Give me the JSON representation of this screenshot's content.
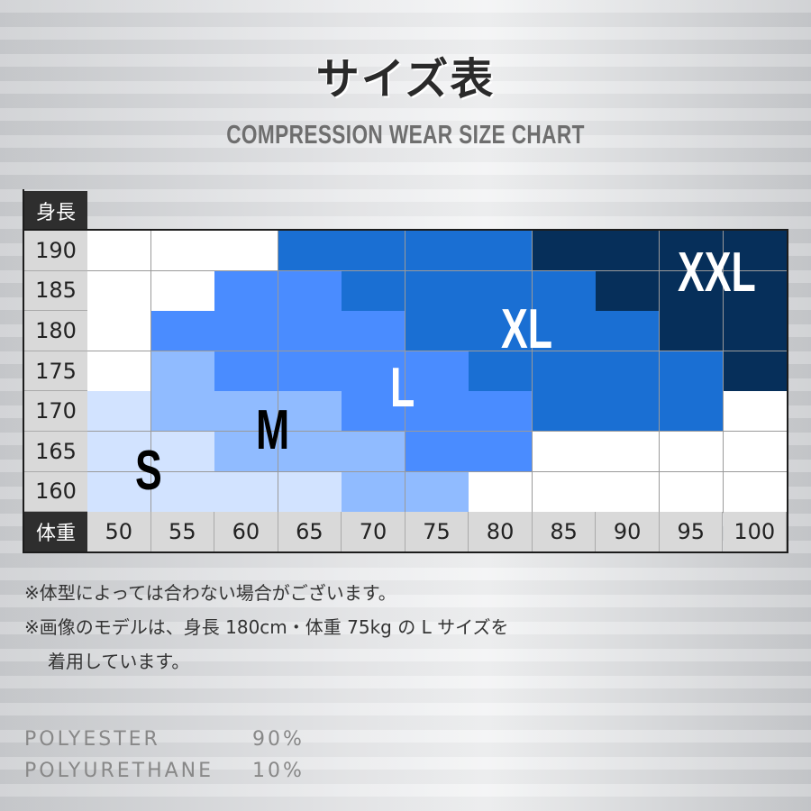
{
  "title": "サイズ表",
  "subtitle": "COMPRESSION WEAR SIZE CHART",
  "chart_data": {
    "type": "heatmap",
    "y_label": "身長",
    "x_label": "体重",
    "y_categories": [
      "190",
      "185",
      "180",
      "175",
      "170",
      "165",
      "160"
    ],
    "x_categories": [
      "50",
      "55",
      "60",
      "65",
      "70",
      "75",
      "80",
      "85",
      "90",
      "95",
      "100"
    ],
    "matrix": [
      [
        "",
        "",
        "",
        "XL",
        "XL",
        "XL",
        "XL",
        "XXL",
        "XXL",
        "XXL",
        "XXL"
      ],
      [
        "",
        "",
        "L",
        "L",
        "XL",
        "XL",
        "XL",
        "XL",
        "XXL",
        "XXL",
        "XXL"
      ],
      [
        "",
        "L",
        "L",
        "L",
        "L",
        "XL",
        "XL",
        "XL",
        "XL",
        "XXL",
        "XXL"
      ],
      [
        "",
        "M",
        "L",
        "L",
        "L",
        "L",
        "XL",
        "XL",
        "XL",
        "XL",
        "XXL"
      ],
      [
        "S",
        "M",
        "M",
        "M",
        "L",
        "L",
        "L",
        "XL",
        "XL",
        "XL",
        ""
      ],
      [
        "S",
        "S",
        "M",
        "M",
        "M",
        "L",
        "L",
        "",
        "",
        "",
        ""
      ],
      [
        "S",
        "S",
        "S",
        "S",
        "M",
        "M",
        "",
        "",
        "",
        "",
        ""
      ]
    ],
    "sizes": [
      "S",
      "M",
      "L",
      "XL",
      "XXL"
    ],
    "colors": {
      "": "#ffffff",
      "S": "#d2e3ff",
      "M": "#90bbff",
      "L": "#4a8cff",
      "XL": "#1a6fd3",
      "XXL": "#062f5a"
    },
    "size_label_colors": {
      "S": "#000000",
      "M": "#000000",
      "L": "#ffffff",
      "XL": "#ffffff",
      "XXL": "#ffffff"
    }
  },
  "notes": [
    "※体型によっては合わない場合がございます。",
    "※画像のモデルは、身長 180cm・体重 75kg の L サイズを",
    "着用しています。"
  ],
  "materials": [
    {
      "name": "POLYESTER",
      "percent": "90%"
    },
    {
      "name": "POLYURETHANE",
      "percent": "10%"
    }
  ]
}
